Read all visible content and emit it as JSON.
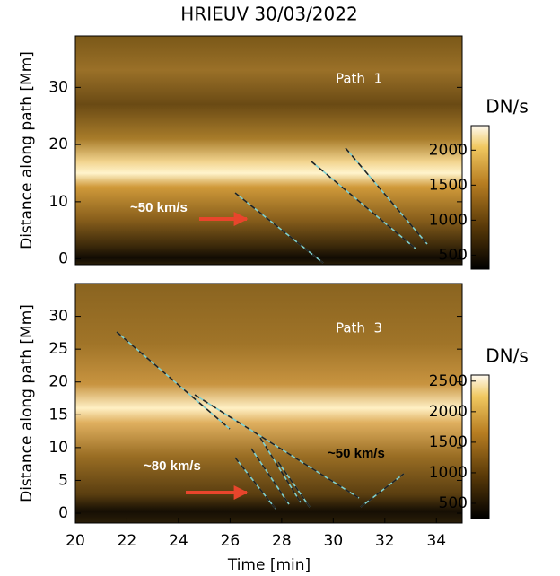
{
  "chart_data": [
    {
      "type": "heatmap",
      "title": "HRIEUV 30/03/2022",
      "ylabel": "Distance along path [Mm]",
      "ylim": [
        -1,
        39
      ],
      "yticks": [
        0,
        10,
        20,
        30
      ],
      "panel_label": "Path  1",
      "speed_labels": [
        "~50 km/s"
      ],
      "colorbar": {
        "label": "DN/s",
        "lim": [
          300,
          2350
        ],
        "ticks": [
          500,
          1000,
          1500,
          2000
        ]
      }
    },
    {
      "type": "heatmap",
      "xlabel": "Time [min]",
      "ylabel": "Distance along path [Mm]",
      "xlim": [
        20,
        35
      ],
      "xticks": [
        20,
        22,
        24,
        26,
        28,
        30,
        32,
        34
      ],
      "ylim": [
        -1.5,
        35
      ],
      "yticks": [
        0,
        5,
        10,
        15,
        20,
        25,
        30
      ],
      "panel_label": "Path  3",
      "speed_labels": [
        "~80 km/s",
        "~50 km/s"
      ],
      "colorbar": {
        "label": "DN/s",
        "lim": [
          250,
          2600
        ],
        "ticks": [
          500,
          1000,
          1500,
          2000,
          2500
        ]
      }
    }
  ]
}
